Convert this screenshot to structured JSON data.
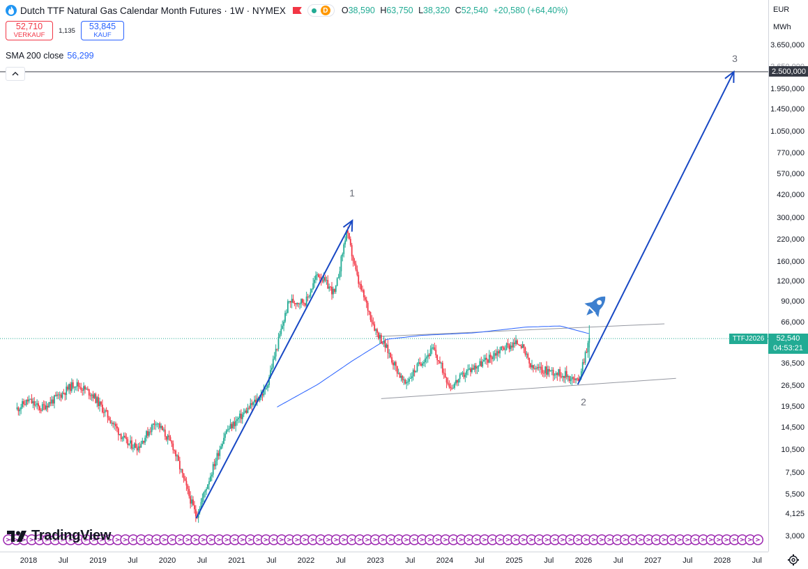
{
  "header": {
    "title": "Dutch TTF Natural Gas Calendar Month Futures · 1W · NYMEX",
    "session_badge": "D",
    "ohlc": {
      "open_label": "O",
      "open": "38,590",
      "high_label": "H",
      "high": "63,750",
      "low_label": "L",
      "low": "38,320",
      "close_label": "C",
      "close": "52,540",
      "change": "+20,580 (+64,40%)"
    }
  },
  "trade": {
    "sell_price": "52,710",
    "sell_label": "VERKAUF",
    "spread": "1,135",
    "buy_price": "53,845",
    "buy_label": "KAUF"
  },
  "indicator": {
    "label": "SMA 200 close",
    "value": "56,299"
  },
  "axis": {
    "currency": "EUR",
    "unit": "MWh",
    "y_ticks": [
      "3.650,000",
      "1.950,000",
      "1.450,000",
      "1.050,000",
      "770,000",
      "570,000",
      "420,000",
      "300,000",
      "220,000",
      "160,000",
      "120,000",
      "90,000",
      "66,000",
      "36,500",
      "26,500",
      "19,500",
      "14,500",
      "10,500",
      "7,500",
      "5,500",
      "4,125",
      "3,000"
    ],
    "y_tick_overlapped": "2.650,000",
    "x_ticks": [
      "2018",
      "Jul",
      "2019",
      "Jul",
      "2020",
      "Jul",
      "2021",
      "Jul",
      "2022",
      "Jul",
      "2023",
      "Jul",
      "2024",
      "Jul",
      "2025",
      "Jul",
      "2026",
      "Jul",
      "2027",
      "Jul",
      "2028",
      "Jul"
    ],
    "horizontal_line_label": "2.500,000",
    "last_price": "52,540",
    "countdown": "04:53:21",
    "symbol_tag": "TTFJ2026"
  },
  "annotations": {
    "wave_1": "1",
    "wave_2": "2",
    "wave_3": "3"
  },
  "brand": {
    "logo_text": "TradingView"
  },
  "colors": {
    "up": "#22ab94",
    "down": "#f23645",
    "sma": "#2962ff",
    "arrow": "#1848c4",
    "trendline": "#9598a1",
    "horizontal_line": "#363a45",
    "event_marker": "#9c27b0",
    "rocket": "#3d7fcf"
  },
  "chart_data": {
    "type": "candlestick",
    "timeframe": "1W",
    "y_scale": "log",
    "ylim": [
      3000,
      3650000
    ],
    "x_range": [
      "2018-01",
      "2028-12"
    ],
    "close_path": [
      {
        "date": "2017-11",
        "value": 19.0
      },
      {
        "date": "2018-01",
        "value": 21.5
      },
      {
        "date": "2018-03",
        "value": 19.0
      },
      {
        "date": "2018-06",
        "value": 22.5
      },
      {
        "date": "2018-09",
        "value": 27.5
      },
      {
        "date": "2018-12",
        "value": 23.5
      },
      {
        "date": "2019-03",
        "value": 16.5
      },
      {
        "date": "2019-06",
        "value": 11.5
      },
      {
        "date": "2019-08",
        "value": 11.0
      },
      {
        "date": "2019-11",
        "value": 16.0
      },
      {
        "date": "2020-02",
        "value": 11.0
      },
      {
        "date": "2020-04",
        "value": 6.5
      },
      {
        "date": "2020-06",
        "value": 4.0
      },
      {
        "date": "2020-08",
        "value": 6.5
      },
      {
        "date": "2020-11",
        "value": 13.5
      },
      {
        "date": "2021-03",
        "value": 19.0
      },
      {
        "date": "2021-06",
        "value": 25.0
      },
      {
        "date": "2021-10",
        "value": 90.0
      },
      {
        "date": "2022-01",
        "value": 90.0
      },
      {
        "date": "2022-03",
        "value": 135.0
      },
      {
        "date": "2022-06",
        "value": 100.0
      },
      {
        "date": "2022-08",
        "value": 250.0
      },
      {
        "date": "2022-10",
        "value": 120.0
      },
      {
        "date": "2023-01",
        "value": 60.0
      },
      {
        "date": "2023-03",
        "value": 45.0
      },
      {
        "date": "2023-06",
        "value": 27.0
      },
      {
        "date": "2023-09",
        "value": 38.0
      },
      {
        "date": "2023-11",
        "value": 45.0
      },
      {
        "date": "2024-02",
        "value": 26.0
      },
      {
        "date": "2024-05",
        "value": 33.0
      },
      {
        "date": "2024-08",
        "value": 38.0
      },
      {
        "date": "2024-11",
        "value": 46.0
      },
      {
        "date": "2025-02",
        "value": 50.0
      },
      {
        "date": "2025-04",
        "value": 34.0
      },
      {
        "date": "2025-07",
        "value": 33.0
      },
      {
        "date": "2025-10",
        "value": 31.0
      },
      {
        "date": "2025-12",
        "value": 28.0
      },
      {
        "date": "2026-01",
        "value": 38.5
      },
      {
        "date": "2026-02",
        "value": 52.54
      }
    ],
    "sma200": [
      {
        "date": "2021-08",
        "value": 19.5
      },
      {
        "date": "2022-03",
        "value": 27.0
      },
      {
        "date": "2022-09",
        "value": 38.0
      },
      {
        "date": "2023-03",
        "value": 52.0
      },
      {
        "date": "2023-09",
        "value": 55.0
      },
      {
        "date": "2024-06",
        "value": 57.0
      },
      {
        "date": "2025-03",
        "value": 62.0
      },
      {
        "date": "2025-09",
        "value": 63.0
      },
      {
        "date": "2026-02",
        "value": 56.3
      }
    ],
    "channel_upper": [
      {
        "date": "2023-01",
        "value": 54.0
      },
      {
        "date": "2027-03",
        "value": 65.0
      }
    ],
    "channel_lower": [
      {
        "date": "2023-02",
        "value": 22.0
      },
      {
        "date": "2027-05",
        "value": 29.5
      }
    ],
    "horizontal_line": {
      "value": 2500000
    },
    "arrows": [
      {
        "from": {
          "date": "2020-06",
          "value": 3.9
        },
        "to": {
          "date": "2022-09",
          "value": 290.0
        },
        "label": "1"
      },
      {
        "from": {
          "date": "2025-12",
          "value": 27.0
        },
        "to": {
          "date": "2028-03",
          "value": 2500000
        },
        "label": "3"
      }
    ],
    "wave_2_point": {
      "date": "2025-12",
      "value": 21.0
    }
  }
}
